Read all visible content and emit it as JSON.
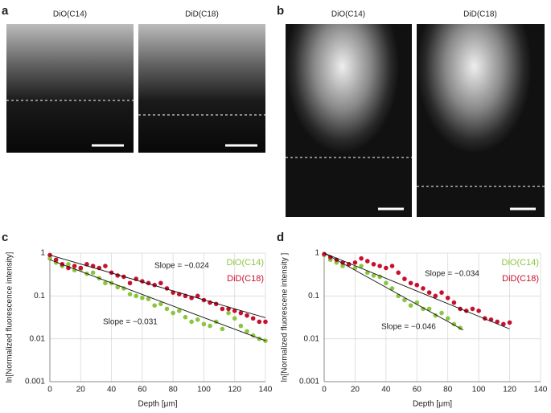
{
  "panels": [
    {
      "label": "a",
      "images": [
        "DiO(C14)",
        "DiD(C18)"
      ]
    },
    {
      "label": "b",
      "images": [
        "DiO(C14)",
        "DiD(C18)"
      ]
    },
    {
      "label": "c"
    },
    {
      "label": "d"
    }
  ],
  "chart_data": [
    {
      "type": "scatter",
      "xlabel": "Depth [μm]",
      "ylabel": "ln[Normalized fluorescence intensity]",
      "xlim": [
        0,
        140
      ],
      "ylim": [
        0.001,
        1
      ],
      "log_y": true,
      "grid": true,
      "legend": "top-right",
      "xticks": [
        0,
        20,
        40,
        60,
        80,
        100,
        120,
        140
      ],
      "yticks": [
        0.001,
        0.01,
        0.1,
        1
      ],
      "series": [
        {
          "name": "DiO(C14)",
          "color": "#8cc63f",
          "x": [
            0,
            4,
            8,
            12,
            16,
            20,
            24,
            28,
            32,
            36,
            40,
            44,
            48,
            52,
            56,
            60,
            64,
            68,
            72,
            76,
            80,
            84,
            88,
            92,
            96,
            100,
            104,
            108,
            112,
            116,
            120,
            124,
            128,
            132,
            136,
            140
          ],
          "values": [
            0.75,
            0.6,
            0.5,
            0.55,
            0.4,
            0.42,
            0.33,
            0.35,
            0.26,
            0.2,
            0.2,
            0.16,
            0.15,
            0.11,
            0.1,
            0.09,
            0.085,
            0.06,
            0.065,
            0.05,
            0.04,
            0.045,
            0.032,
            0.025,
            0.028,
            0.022,
            0.02,
            0.025,
            0.017,
            0.04,
            0.03,
            0.02,
            0.015,
            0.012,
            0.01,
            0.009
          ]
        },
        {
          "name": "DiD(C18)",
          "color": "#c8102e",
          "x": [
            0,
            4,
            8,
            12,
            16,
            20,
            24,
            28,
            32,
            36,
            40,
            44,
            48,
            52,
            56,
            60,
            64,
            68,
            72,
            76,
            80,
            84,
            88,
            92,
            96,
            100,
            104,
            108,
            112,
            116,
            120,
            124,
            128,
            132,
            136,
            140
          ],
          "values": [
            0.9,
            0.7,
            0.55,
            0.45,
            0.5,
            0.45,
            0.55,
            0.5,
            0.45,
            0.5,
            0.35,
            0.3,
            0.28,
            0.2,
            0.25,
            0.22,
            0.2,
            0.18,
            0.2,
            0.15,
            0.12,
            0.11,
            0.1,
            0.09,
            0.1,
            0.08,
            0.07,
            0.065,
            0.05,
            0.05,
            0.045,
            0.04,
            0.035,
            0.03,
            0.025,
            0.025
          ]
        }
      ],
      "fits": [
        {
          "label": "Slope = −0.024",
          "x": [
            0,
            140
          ],
          "values": [
            0.9,
            0.031
          ]
        },
        {
          "label": "Slope = −0.031",
          "x": [
            0,
            140
          ],
          "values": [
            0.7,
            0.009
          ]
        }
      ]
    },
    {
      "type": "scatter",
      "xlabel": "Depth [μm]",
      "ylabel": "ln[Normalized fluorescene intensity ]",
      "xlim": [
        0,
        140
      ],
      "ylim": [
        0.001,
        1
      ],
      "log_y": true,
      "grid": true,
      "legend": "top-right",
      "xticks": [
        0,
        20,
        40,
        60,
        80,
        100,
        120,
        140
      ],
      "yticks": [
        0.001,
        0.01,
        0.1,
        1
      ],
      "series": [
        {
          "name": "DiO(C14)",
          "color": "#8cc63f",
          "x": [
            0,
            4,
            8,
            12,
            16,
            20,
            24,
            28,
            32,
            36,
            40,
            44,
            48,
            52,
            56,
            60,
            64,
            68,
            72,
            76,
            80,
            84,
            88
          ],
          "values": [
            0.9,
            0.7,
            0.6,
            0.5,
            0.55,
            0.45,
            0.5,
            0.35,
            0.3,
            0.28,
            0.2,
            0.15,
            0.1,
            0.08,
            0.06,
            0.07,
            0.05,
            0.05,
            0.035,
            0.04,
            0.03,
            0.022,
            0.018
          ]
        },
        {
          "name": "DiD(C18)",
          "color": "#c8102e",
          "x": [
            0,
            4,
            8,
            12,
            16,
            20,
            24,
            28,
            32,
            36,
            40,
            44,
            48,
            52,
            56,
            60,
            64,
            68,
            72,
            76,
            80,
            84,
            88,
            92,
            96,
            100,
            104,
            108,
            112,
            116,
            120
          ],
          "values": [
            0.95,
            0.8,
            0.7,
            0.6,
            0.55,
            0.6,
            0.75,
            0.65,
            0.55,
            0.5,
            0.45,
            0.5,
            0.35,
            0.25,
            0.2,
            0.18,
            0.15,
            0.12,
            0.1,
            0.12,
            0.09,
            0.07,
            0.05,
            0.045,
            0.05,
            0.045,
            0.03,
            0.028,
            0.025,
            0.022,
            0.024
          ]
        }
      ],
      "fits": [
        {
          "label": "Slope = −0.034",
          "x": [
            0,
            120
          ],
          "values": [
            1.0,
            0.017
          ]
        },
        {
          "label": "Slope = −0.046",
          "x": [
            0,
            90
          ],
          "values": [
            1.0,
            0.016
          ]
        }
      ]
    }
  ]
}
